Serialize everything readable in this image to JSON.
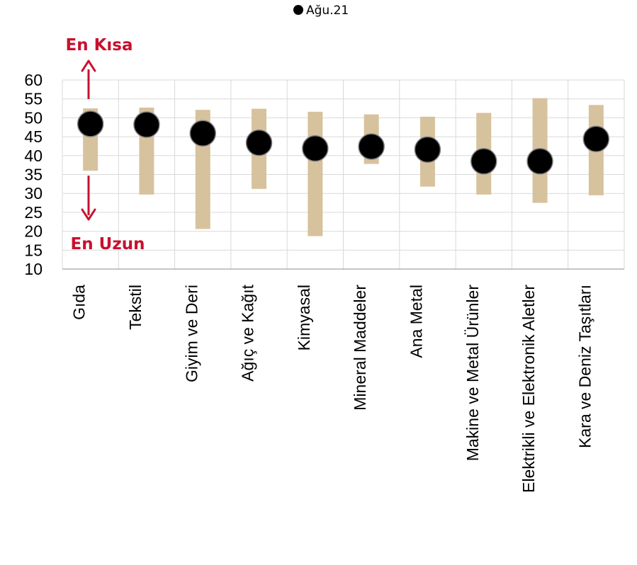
{
  "chart_data": {
    "type": "scatter",
    "title": "",
    "xlabel": "",
    "ylabel": "",
    "ylim": [
      10,
      60
    ],
    "yticks": [
      10,
      15,
      20,
      25,
      30,
      35,
      40,
      45,
      50,
      55,
      60
    ],
    "grid": true,
    "legend_position": "top-center",
    "categories": [
      "Gıda",
      "Tekstil",
      "Giyim ve Deri",
      "Ağıç ve Kağıt",
      "Kimyasal",
      "Mineral Maddeler",
      "Ana Metal",
      "Makine ve Metal Ürünler",
      "Elektrikli ve Elektronik Aletler",
      "Kara ve Deniz Taşıtları"
    ],
    "range": {
      "low": [
        36.0,
        29.7,
        20.6,
        31.2,
        18.7,
        37.8,
        31.8,
        29.7,
        27.5,
        29.5
      ],
      "high": [
        52.5,
        52.7,
        52.1,
        52.4,
        51.6,
        50.9,
        50.3,
        51.3,
        55.2,
        53.4
      ],
      "color": "#d7c29e"
    },
    "series": [
      {
        "name": "Ağu.21",
        "values": [
          48.4,
          48.2,
          45.9,
          43.4,
          41.9,
          42.4,
          41.6,
          38.5,
          38.5,
          44.4
        ],
        "color": "#000000"
      }
    ],
    "annotations": {
      "top": "En Kısa",
      "bottom": "En Uzun",
      "color": "#c8102e"
    }
  }
}
